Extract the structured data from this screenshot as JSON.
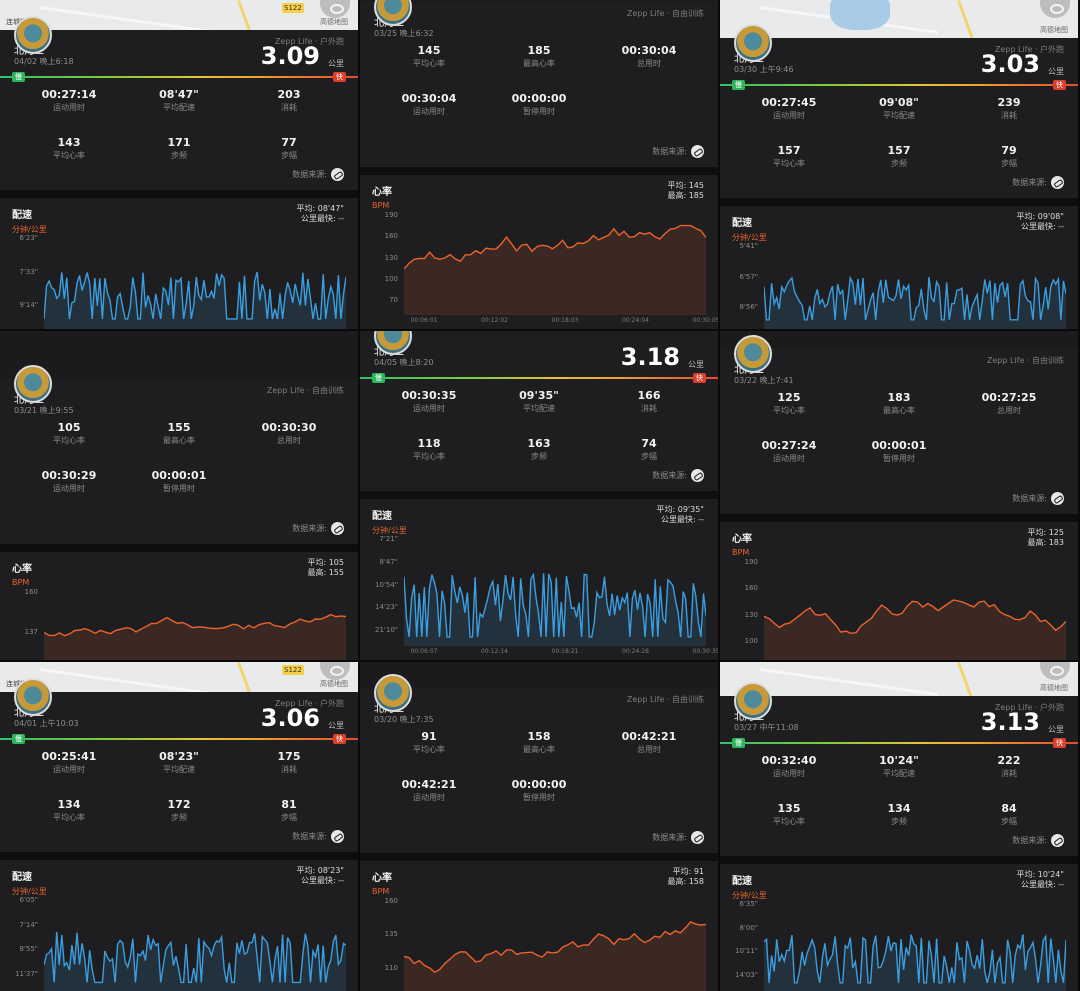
{
  "colors": {
    "pace_line": "#3b9ee0",
    "hr_line": "#e8632d",
    "accent_unit": "#e8632d",
    "bar_slow": "#2eb55c",
    "bar_fast": "#d93f2b"
  },
  "icons": {
    "avatar": "avatar-icon",
    "data_source": "data-source-icon",
    "map_toggle": "eye-icon"
  },
  "common": {
    "user": "北河二",
    "distance_unit": "公里",
    "slow_label": "慢",
    "fast_label": "快",
    "data_source_label": "数据来源:",
    "pace_title": "配速",
    "pace_unit": "分钟/公里",
    "hr_title": "心率",
    "hr_unit": "BPM",
    "fastest_km_label": "公里最快:",
    "fastest_km_value": "--",
    "avg_label": "平均:",
    "max_label": "最高:",
    "map_copyright": "高德地图"
  },
  "panels": [
    {
      "id": "p1",
      "mode": "outdoor",
      "header": "Zepp Life · 户外跑",
      "date": "04/02 晚上6:18",
      "distance": "3.09",
      "map_label": "连城学",
      "map_badge": "S122",
      "stats": [
        {
          "v": "00:27:14",
          "l": "运动用时"
        },
        {
          "v": "08'47\"",
          "l": "平均配速"
        },
        {
          "v": "203",
          "l": "消耗"
        },
        {
          "v": "143",
          "l": "平均心率"
        },
        {
          "v": "171",
          "l": "步频"
        },
        {
          "v": "77",
          "l": "步幅"
        }
      ],
      "chart": {
        "type": "pace",
        "avg": "08'47\"",
        "yticks": [
          "6'23\"",
          "7'33\"",
          "9'14\""
        ],
        "xticks": [],
        "seed": 3
      }
    },
    {
      "id": "p2",
      "mode": "free",
      "header": "Zepp Life · 自由训练",
      "date": "03/25 晚上6:32",
      "stats": [
        {
          "v": "145",
          "l": "平均心率"
        },
        {
          "v": "185",
          "l": "最高心率"
        },
        {
          "v": "00:30:04",
          "l": "总用时"
        },
        {
          "v": "00:30:04",
          "l": "运动用时"
        },
        {
          "v": "00:00:00",
          "l": "暂停用时"
        }
      ],
      "chart": {
        "type": "hr",
        "avg": "145",
        "max": "185",
        "yticks": [
          "190",
          "160",
          "130",
          "100",
          "70"
        ],
        "xticks": [
          "00:06:01",
          "00:12:02",
          "00:18:03",
          "00:24:04",
          "00:30:05"
        ],
        "seed": 7
      }
    },
    {
      "id": "p3",
      "mode": "outdoor",
      "header": "Zepp Life · 户外跑",
      "date": "03/30 上午9:46",
      "distance": "3.03",
      "map_label": "",
      "map_badge": "",
      "stats": [
        {
          "v": "00:27:45",
          "l": "运动用时"
        },
        {
          "v": "09'08\"",
          "l": "平均配速"
        },
        {
          "v": "239",
          "l": "消耗"
        },
        {
          "v": "157",
          "l": "平均心率"
        },
        {
          "v": "157",
          "l": "步频"
        },
        {
          "v": "79",
          "l": "步幅"
        }
      ],
      "chart": {
        "type": "pace",
        "avg": "09'08\"",
        "yticks": [
          "5'41\"",
          "6'57\"",
          "8'56\""
        ],
        "xticks": [],
        "seed": 11
      }
    },
    {
      "id": "p4",
      "mode": "free",
      "header": "Zepp Life · 自由训练",
      "date": "03/21 晚上9:55",
      "stats": [
        {
          "v": "105",
          "l": "平均心率"
        },
        {
          "v": "155",
          "l": "最高心率"
        },
        {
          "v": "00:30:30",
          "l": "总用时"
        },
        {
          "v": "00:30:29",
          "l": "运动用时"
        },
        {
          "v": "00:00:01",
          "l": "暂停用时"
        }
      ],
      "chart": {
        "type": "hr",
        "avg": "105",
        "max": "155",
        "yticks": [
          "160",
          "137"
        ],
        "xticks": [],
        "seed": 13
      }
    },
    {
      "id": "p5",
      "mode": "outdoor",
      "header": "",
      "date": "04/05 晚上8:20",
      "distance": "3.18",
      "map_label": "",
      "map_badge": "",
      "stats": [
        {
          "v": "00:30:35",
          "l": "运动用时"
        },
        {
          "v": "09'35\"",
          "l": "平均配速"
        },
        {
          "v": "166",
          "l": "消耗"
        },
        {
          "v": "118",
          "l": "平均心率"
        },
        {
          "v": "163",
          "l": "步频"
        },
        {
          "v": "74",
          "l": "步幅"
        }
      ],
      "chart": {
        "type": "pace",
        "avg": "09'35\"",
        "yticks": [
          "7'21\"",
          "8'47\"",
          "10'54\"",
          "14'23\"",
          "21'10\""
        ],
        "xticks": [
          "00:06:07",
          "00:12:14",
          "00:18:21",
          "00:24:28",
          "00:30:35"
        ],
        "seed": 17
      }
    },
    {
      "id": "p6",
      "mode": "free",
      "header": "Zepp Life · 自由训练",
      "date": "03/22 晚上7:41",
      "stats": [
        {
          "v": "125",
          "l": "平均心率"
        },
        {
          "v": "183",
          "l": "最高心率"
        },
        {
          "v": "00:27:25",
          "l": "总用时"
        },
        {
          "v": "00:27:24",
          "l": "运动用时"
        },
        {
          "v": "00:00:01",
          "l": "暂停用时"
        }
      ],
      "chart": {
        "type": "hr",
        "avg": "125",
        "max": "183",
        "yticks": [
          "190",
          "160",
          "130",
          "100"
        ],
        "xticks": [],
        "seed": 19
      }
    },
    {
      "id": "p7",
      "mode": "outdoor",
      "header": "Zepp Life · 户外跑",
      "date": "04/01 上午10:03",
      "distance": "3.06",
      "map_label": "连城学",
      "map_badge": "S122",
      "stats": [
        {
          "v": "00:25:41",
          "l": "运动用时"
        },
        {
          "v": "08'23\"",
          "l": "平均配速"
        },
        {
          "v": "175",
          "l": "消耗"
        },
        {
          "v": "134",
          "l": "平均心率"
        },
        {
          "v": "172",
          "l": "步频"
        },
        {
          "v": "81",
          "l": "步幅"
        }
      ],
      "chart": {
        "type": "pace",
        "avg": "08'23\"",
        "yticks": [
          "6'05\"",
          "7'14\"",
          "8'55\"",
          "11'37\""
        ],
        "xticks": [],
        "seed": 23
      }
    },
    {
      "id": "p8",
      "mode": "free",
      "header": "Zepp Life · 自由训练",
      "date": "03/20 晚上7:35",
      "stats": [
        {
          "v": "91",
          "l": "平均心率"
        },
        {
          "v": "158",
          "l": "最高心率"
        },
        {
          "v": "00:42:21",
          "l": "总用时"
        },
        {
          "v": "00:42:21",
          "l": "运动用时"
        },
        {
          "v": "00:00:00",
          "l": "暂停用时"
        }
      ],
      "chart": {
        "type": "hr",
        "avg": "91",
        "max": "158",
        "yticks": [
          "160",
          "135",
          "110"
        ],
        "xticks": [],
        "seed": 29
      }
    },
    {
      "id": "p9",
      "mode": "outdoor",
      "header": "Zepp Life · 户外跑",
      "date": "03/27 中午11:08",
      "distance": "3.13",
      "map_label": "",
      "map_badge": "",
      "stats": [
        {
          "v": "00:32:40",
          "l": "运动用时"
        },
        {
          "v": "10'24\"",
          "l": "平均配速"
        },
        {
          "v": "222",
          "l": "消耗"
        },
        {
          "v": "135",
          "l": "平均心率"
        },
        {
          "v": "134",
          "l": "步频"
        },
        {
          "v": "84",
          "l": "步幅"
        }
      ],
      "chart": {
        "type": "pace",
        "avg": "10'24\"",
        "yticks": [
          "6'35\"",
          "8'00\"",
          "10'11\"",
          "14'03\""
        ],
        "xticks": [],
        "seed": 31
      }
    }
  ]
}
